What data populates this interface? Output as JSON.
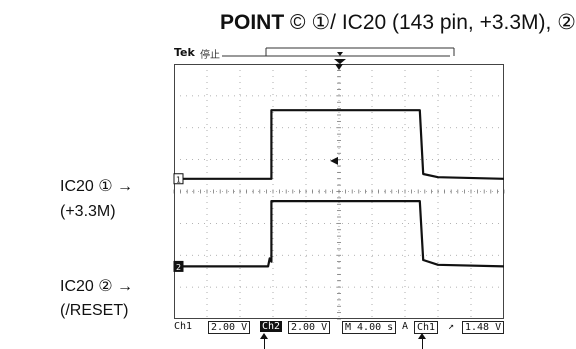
{
  "title": {
    "point": "POINT",
    "rest": "© ①/ IC20 (143 pin, +3.3M), ②"
  },
  "scope": {
    "brand": "Tek",
    "status": "停止",
    "readout": {
      "ch1": "Ch1",
      "ch1_scale": "2.00 V",
      "ch2": "Ch2",
      "ch2_scale": "2.00 V",
      "timebase": "M 4.00 s",
      "trigger_mode": "A",
      "trigger_src": "Ch1",
      "trigger_slope": "↗",
      "trigger_level": "1.48 V"
    },
    "channel_markers": [
      "1",
      "2"
    ]
  },
  "labels": {
    "ch1_name": "IC20 ①",
    "ch1_desc": "(+3.3M)",
    "ch2_name": "IC20 ②",
    "ch2_desc": "(/RESET)",
    "arrow": "→"
  },
  "chart_data": {
    "type": "line",
    "title": "",
    "xlabel": "",
    "ylabel": "",
    "x_divisions": 10,
    "y_divisions": 8,
    "grid": true,
    "series": [
      {
        "name": "Ch1",
        "points": [
          [
            0,
            3.6
          ],
          [
            2.95,
            3.6
          ],
          [
            2.95,
            1.45
          ],
          [
            7.45,
            1.45
          ],
          [
            7.55,
            3.45
          ],
          [
            8.0,
            3.55
          ],
          [
            10,
            3.6
          ]
        ]
      },
      {
        "name": "Ch2",
        "points": [
          [
            0,
            6.35
          ],
          [
            2.85,
            6.35
          ],
          [
            2.9,
            6.1
          ],
          [
            2.95,
            6.2
          ],
          [
            2.95,
            4.3
          ],
          [
            7.45,
            4.3
          ],
          [
            7.55,
            6.15
          ],
          [
            8.0,
            6.3
          ],
          [
            10,
            6.35
          ]
        ]
      }
    ],
    "colors": {
      "trace": "#111111",
      "grid": "#9a9a9a"
    }
  }
}
